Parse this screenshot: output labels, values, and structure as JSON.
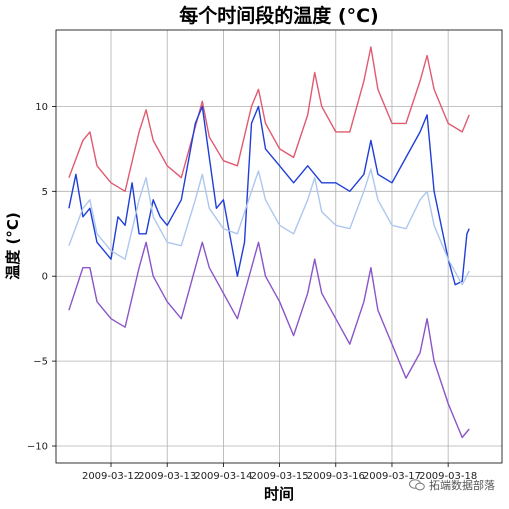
{
  "chart_data": {
    "type": "line",
    "title": "每个时间段的温度 (°C)",
    "xlabel": "时间",
    "ylabel": "温度 (°C)",
    "xlim": [
      "2009-03-11 00:30",
      "2009-03-18 23:00"
    ],
    "ylim": [
      -11,
      14.5
    ],
    "x_ticks": [
      "2009-03-12",
      "2009-03-13",
      "2009-03-14",
      "2009-03-15",
      "2009-03-16",
      "2009-03-17",
      "2009-03-18"
    ],
    "y_ticks": [
      -10,
      -5,
      0,
      5,
      10
    ],
    "grid": true,
    "series": [
      {
        "color": "#e05a70",
        "x": [
          "2009-03-11 06:00",
          "2009-03-11 12:00",
          "2009-03-11 15:00",
          "2009-03-11 18:00",
          "2009-03-12 00:00",
          "2009-03-12 06:00",
          "2009-03-12 12:00",
          "2009-03-12 15:00",
          "2009-03-12 18:00",
          "2009-03-13 00:00",
          "2009-03-13 06:00",
          "2009-03-13 12:00",
          "2009-03-13 15:00",
          "2009-03-13 18:00",
          "2009-03-14 00:00",
          "2009-03-14 06:00",
          "2009-03-14 12:00",
          "2009-03-14 15:00",
          "2009-03-14 18:00",
          "2009-03-15 00:00",
          "2009-03-15 06:00",
          "2009-03-15 12:00",
          "2009-03-15 15:00",
          "2009-03-15 18:00",
          "2009-03-16 00:00",
          "2009-03-16 06:00",
          "2009-03-16 12:00",
          "2009-03-16 15:00",
          "2009-03-16 18:00",
          "2009-03-17 00:00",
          "2009-03-17 06:00",
          "2009-03-17 12:00",
          "2009-03-17 15:00",
          "2009-03-17 18:00",
          "2009-03-18 00:00",
          "2009-03-18 06:00",
          "2009-03-18 09:00"
        ],
        "y": [
          5.8,
          8.0,
          8.5,
          6.5,
          5.5,
          5.0,
          8.5,
          9.8,
          8.0,
          6.5,
          5.8,
          8.8,
          10.3,
          8.2,
          6.8,
          6.5,
          10.0,
          11.0,
          9.0,
          7.5,
          7.0,
          9.5,
          12.0,
          10.0,
          8.5,
          8.5,
          11.5,
          13.5,
          11.0,
          9.0,
          9.0,
          11.5,
          13.0,
          11.0,
          9.0,
          8.5,
          9.5
        ]
      },
      {
        "color": "#1f3fd8",
        "x": [
          "2009-03-11 06:00",
          "2009-03-11 09:00",
          "2009-03-11 12:00",
          "2009-03-11 15:00",
          "2009-03-11 18:00",
          "2009-03-11 21:00",
          "2009-03-12 00:00",
          "2009-03-12 03:00",
          "2009-03-12 06:00",
          "2009-03-12 09:00",
          "2009-03-12 12:00",
          "2009-03-12 15:00",
          "2009-03-12 18:00",
          "2009-03-12 21:00",
          "2009-03-13 00:00",
          "2009-03-13 06:00",
          "2009-03-13 12:00",
          "2009-03-13 15:00",
          "2009-03-13 18:00",
          "2009-03-13 21:00",
          "2009-03-14 00:00",
          "2009-03-14 06:00",
          "2009-03-14 09:00",
          "2009-03-14 12:00",
          "2009-03-14 15:00",
          "2009-03-14 18:00",
          "2009-03-15 00:00",
          "2009-03-15 06:00",
          "2009-03-15 12:00",
          "2009-03-15 15:00",
          "2009-03-15 18:00",
          "2009-03-16 00:00",
          "2009-03-16 06:00",
          "2009-03-16 12:00",
          "2009-03-16 15:00",
          "2009-03-16 18:00",
          "2009-03-17 00:00",
          "2009-03-17 06:00",
          "2009-03-17 12:00",
          "2009-03-17 15:00",
          "2009-03-17 18:00",
          "2009-03-18 00:00",
          "2009-03-18 03:00",
          "2009-03-18 06:00",
          "2009-03-18 08:00",
          "2009-03-18 09:00"
        ],
        "y": [
          4.0,
          6.0,
          3.5,
          4.0,
          2.0,
          1.5,
          1.0,
          3.5,
          3.0,
          5.5,
          2.5,
          2.5,
          4.5,
          3.5,
          3.0,
          4.5,
          9.0,
          10.0,
          7.0,
          4.0,
          4.5,
          0.0,
          2.0,
          9.0,
          10.0,
          7.5,
          6.5,
          5.5,
          6.5,
          6.0,
          5.5,
          5.5,
          5.0,
          6.0,
          8.0,
          6.0,
          5.5,
          7.0,
          8.5,
          9.5,
          5.0,
          1.0,
          -0.5,
          -0.3,
          2.5,
          2.8
        ]
      },
      {
        "color": "#aec7ee",
        "x": [
          "2009-03-11 06:00",
          "2009-03-11 12:00",
          "2009-03-11 15:00",
          "2009-03-11 18:00",
          "2009-03-12 00:00",
          "2009-03-12 06:00",
          "2009-03-12 12:00",
          "2009-03-12 15:00",
          "2009-03-12 18:00",
          "2009-03-13 00:00",
          "2009-03-13 06:00",
          "2009-03-13 12:00",
          "2009-03-13 15:00",
          "2009-03-13 18:00",
          "2009-03-14 00:00",
          "2009-03-14 06:00",
          "2009-03-14 12:00",
          "2009-03-14 15:00",
          "2009-03-14 18:00",
          "2009-03-15 00:00",
          "2009-03-15 06:00",
          "2009-03-15 12:00",
          "2009-03-15 15:00",
          "2009-03-15 18:00",
          "2009-03-16 00:00",
          "2009-03-16 06:00",
          "2009-03-16 12:00",
          "2009-03-16 15:00",
          "2009-03-16 18:00",
          "2009-03-17 00:00",
          "2009-03-17 06:00",
          "2009-03-17 12:00",
          "2009-03-17 15:00",
          "2009-03-17 18:00",
          "2009-03-18 00:00",
          "2009-03-18 06:00",
          "2009-03-18 09:00"
        ],
        "y": [
          1.8,
          4.0,
          4.5,
          2.5,
          1.5,
          1.0,
          4.5,
          5.8,
          3.5,
          2.0,
          1.8,
          4.5,
          6.0,
          4.0,
          2.8,
          2.5,
          5.0,
          6.2,
          4.5,
          3.0,
          2.5,
          4.5,
          5.8,
          3.8,
          3.0,
          2.8,
          5.0,
          6.3,
          4.5,
          3.0,
          2.8,
          4.5,
          5.0,
          3.0,
          1.0,
          -0.5,
          0.3
        ]
      },
      {
        "color": "#8a55c8",
        "x": [
          "2009-03-11 06:00",
          "2009-03-11 12:00",
          "2009-03-11 15:00",
          "2009-03-11 18:00",
          "2009-03-12 00:00",
          "2009-03-12 06:00",
          "2009-03-12 12:00",
          "2009-03-12 15:00",
          "2009-03-12 18:00",
          "2009-03-13 00:00",
          "2009-03-13 06:00",
          "2009-03-13 12:00",
          "2009-03-13 15:00",
          "2009-03-13 18:00",
          "2009-03-14 00:00",
          "2009-03-14 06:00",
          "2009-03-14 12:00",
          "2009-03-14 15:00",
          "2009-03-14 18:00",
          "2009-03-15 00:00",
          "2009-03-15 06:00",
          "2009-03-15 12:00",
          "2009-03-15 15:00",
          "2009-03-15 18:00",
          "2009-03-16 00:00",
          "2009-03-16 06:00",
          "2009-03-16 12:00",
          "2009-03-16 15:00",
          "2009-03-16 18:00",
          "2009-03-17 00:00",
          "2009-03-17 06:00",
          "2009-03-17 12:00",
          "2009-03-17 15:00",
          "2009-03-17 18:00",
          "2009-03-18 00:00",
          "2009-03-18 06:00",
          "2009-03-18 09:00"
        ],
        "y": [
          -2.0,
          0.5,
          0.5,
          -1.5,
          -2.5,
          -3.0,
          0.5,
          2.0,
          0.0,
          -1.5,
          -2.5,
          0.5,
          2.0,
          0.5,
          -1.0,
          -2.5,
          0.5,
          2.0,
          0.0,
          -1.5,
          -3.5,
          -1.0,
          1.0,
          -1.0,
          -2.5,
          -4.0,
          -1.5,
          0.5,
          -2.0,
          -4.0,
          -6.0,
          -4.5,
          -2.5,
          -5.0,
          -7.5,
          -9.5,
          -9.0
        ]
      }
    ]
  },
  "watermark": {
    "text": "拓端数据部落",
    "icon": "wechat-icon"
  }
}
